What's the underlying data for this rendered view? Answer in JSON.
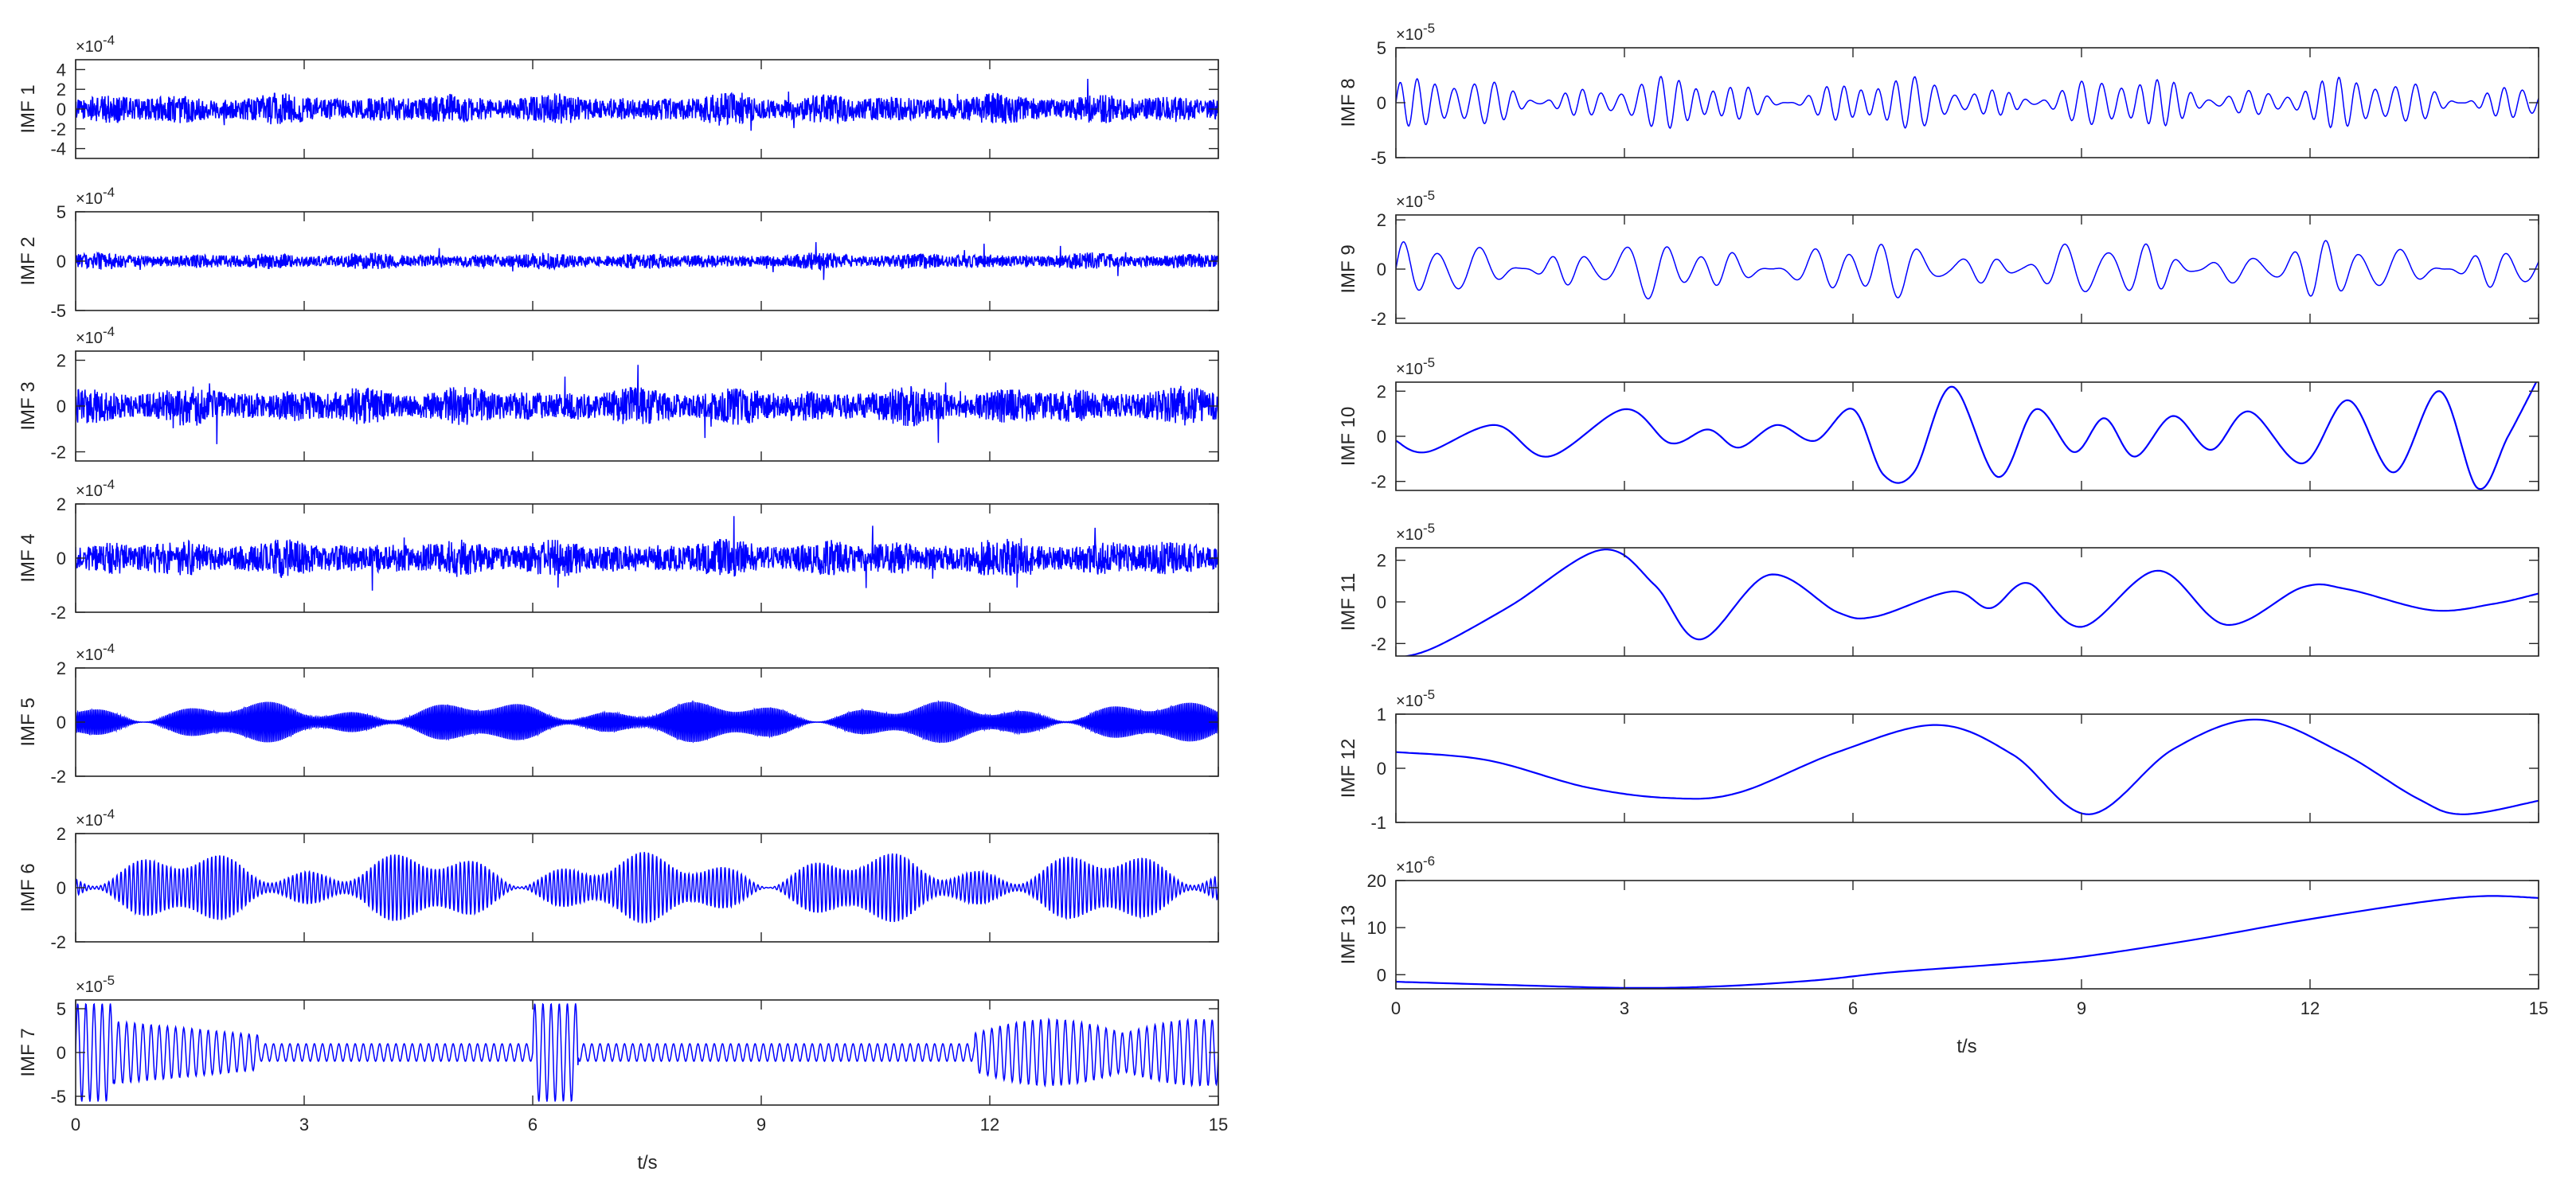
{
  "figure": {
    "xlabel": "t/s",
    "line_color": "#0000ff",
    "axes_color": "#262626"
  },
  "chart_data": [
    {
      "type": "line",
      "ylabel": "IMF 1",
      "exponent": "-4",
      "ylim": [
        -5,
        5
      ],
      "yticks": [
        "4",
        "2",
        "0",
        "-2",
        "-4"
      ],
      "ytick_values": [
        4,
        2,
        0,
        -2,
        -4
      ],
      "xlim": [
        0,
        15
      ],
      "xticks": [],
      "series": [
        {
          "name": "",
          "kind": "noise",
          "amp": 1.7,
          "cycles": 0,
          "sample_rate": 2
        }
      ]
    },
    {
      "type": "line",
      "ylabel": "IMF 2",
      "exponent": "-4",
      "ylim": [
        -5,
        5
      ],
      "yticks": [
        "5",
        "0",
        "-5"
      ],
      "ytick_values": [
        5,
        0,
        -5
      ],
      "xlim": [
        0,
        15
      ],
      "xticks": [],
      "series": [
        {
          "name": "",
          "kind": "noise",
          "amp": 0.9,
          "cycles": 0,
          "sample_rate": 2
        }
      ]
    },
    {
      "type": "line",
      "ylabel": "IMF 3",
      "exponent": "-4",
      "ylim": [
        -2.4,
        2.4
      ],
      "yticks": [
        "2",
        "0",
        "-2"
      ],
      "ytick_values": [
        2,
        0,
        -2
      ],
      "xlim": [
        0,
        15
      ],
      "xticks": [],
      "series": [
        {
          "name": "",
          "kind": "noise",
          "amp": 0.9,
          "cycles": 0,
          "sample_rate": 2
        }
      ]
    },
    {
      "type": "line",
      "ylabel": "IMF 4",
      "exponent": "-4",
      "ylim": [
        -2,
        2
      ],
      "yticks": [
        "2",
        "0",
        "-2"
      ],
      "ytick_values": [
        2,
        0,
        -2
      ],
      "xlim": [
        0,
        15
      ],
      "xticks": [],
      "series": [
        {
          "name": "",
          "kind": "noise",
          "amp": 0.75,
          "cycles": 0,
          "sample_rate": 2
        }
      ]
    },
    {
      "type": "line",
      "ylabel": "IMF 5",
      "exponent": "-4",
      "ylim": [
        -2,
        2
      ],
      "yticks": [
        "2",
        "0",
        "-2"
      ],
      "ytick_values": [
        2,
        0,
        -2
      ],
      "xlim": [
        0,
        15
      ],
      "xticks": [],
      "series": [
        {
          "name": "",
          "kind": "osc",
          "amp": 0.7,
          "cycles": 640,
          "sample_rate": 1
        }
      ]
    },
    {
      "type": "line",
      "ylabel": "IMF 6",
      "exponent": "-4",
      "ylim": [
        -2,
        2
      ],
      "yticks": [
        "2",
        "0",
        "-2"
      ],
      "ytick_values": [
        2,
        0,
        -2
      ],
      "xlim": [
        0,
        15
      ],
      "xticks": [],
      "series": [
        {
          "name": "",
          "kind": "osc",
          "amp": 1.2,
          "cycles": 280,
          "sample_rate": 1
        }
      ]
    },
    {
      "type": "line",
      "ylabel": "IMF 7",
      "exponent": "-5",
      "ylim": [
        -6,
        6
      ],
      "yticks": [
        "5",
        "0",
        "-5"
      ],
      "ytick_values": [
        5,
        0,
        -5
      ],
      "xlim": [
        0,
        15
      ],
      "xticks": [
        "0",
        "3",
        "6",
        "9",
        "12",
        "15"
      ],
      "tick_values": [
        0,
        3,
        6,
        9,
        12,
        15
      ],
      "series": [
        {
          "name": "",
          "kind": "bursts",
          "amp": 4,
          "cycles": 140,
          "sample_rate": 1
        }
      ]
    },
    {
      "type": "line",
      "ylabel": "IMF 8",
      "exponent": "-5",
      "ylim": [
        -5,
        5
      ],
      "yticks": [
        "5",
        "0",
        "-5"
      ],
      "ytick_values": [
        5,
        0,
        -5
      ],
      "xlim": [
        0,
        15
      ],
      "xticks": [],
      "series": [
        {
          "name": "",
          "kind": "osc",
          "amp": 2.2,
          "cycles": 62,
          "sample_rate": 1
        }
      ]
    },
    {
      "type": "line",
      "ylabel": "IMF 9",
      "exponent": "-5",
      "ylim": [
        -2.2,
        2.2
      ],
      "yticks": [
        "2",
        "0",
        "-2"
      ],
      "ytick_values": [
        2,
        0,
        -2
      ],
      "xlim": [
        0,
        15
      ],
      "xticks": [],
      "series": [
        {
          "name": "",
          "kind": "osc",
          "amp": 1.1,
          "cycles": 31,
          "sample_rate": 1
        }
      ]
    },
    {
      "type": "line",
      "ylabel": "IMF 10",
      "exponent": "-5",
      "ylim": [
        -2.4,
        2.4
      ],
      "yticks": [
        "2",
        "0",
        "-2"
      ],
      "ytick_values": [
        2,
        0,
        -2
      ],
      "xlim": [
        0,
        15
      ],
      "xticks": [],
      "series": [
        {
          "name": "",
          "kind": "points",
          "points": [
            [
              0,
              -0.2
            ],
            [
              0.4,
              -0.7
            ],
            [
              1.3,
              0.5
            ],
            [
              2.0,
              -0.9
            ],
            [
              3.0,
              1.2
            ],
            [
              3.6,
              -0.3
            ],
            [
              4.1,
              0.3
            ],
            [
              4.5,
              -0.5
            ],
            [
              5.0,
              0.5
            ],
            [
              5.5,
              -0.2
            ],
            [
              6.0,
              1.2
            ],
            [
              6.4,
              -1.7
            ],
            [
              6.8,
              -1.6
            ],
            [
              7.3,
              2.2
            ],
            [
              7.9,
              -1.8
            ],
            [
              8.4,
              1.2
            ],
            [
              8.9,
              -0.7
            ],
            [
              9.3,
              0.8
            ],
            [
              9.7,
              -0.9
            ],
            [
              10.2,
              0.9
            ],
            [
              10.7,
              -0.6
            ],
            [
              11.2,
              1.1
            ],
            [
              11.9,
              -1.2
            ],
            [
              12.5,
              1.6
            ],
            [
              13.1,
              -1.6
            ],
            [
              13.7,
              2.0
            ],
            [
              14.2,
              -2.3
            ],
            [
              14.6,
              0.0
            ],
            [
              15,
              2.6
            ]
          ]
        }
      ]
    },
    {
      "type": "line",
      "ylabel": "IMF 11",
      "exponent": "-5",
      "ylim": [
        -2.6,
        2.6
      ],
      "yticks": [
        "2",
        "0",
        "-2"
      ],
      "ytick_values": [
        2,
        0,
        -2
      ],
      "xlim": [
        0,
        15
      ],
      "xticks": [],
      "series": [
        {
          "name": "",
          "kind": "points",
          "points": [
            [
              0,
              -2.7
            ],
            [
              0.5,
              -2.2
            ],
            [
              1.5,
              -0.2
            ],
            [
              2.7,
              2.5
            ],
            [
              3.4,
              0.8
            ],
            [
              4.0,
              -1.8
            ],
            [
              4.9,
              1.3
            ],
            [
              5.8,
              -0.5
            ],
            [
              6.3,
              -0.7
            ],
            [
              7.3,
              0.5
            ],
            [
              7.8,
              -0.3
            ],
            [
              8.3,
              0.9
            ],
            [
              9.0,
              -1.2
            ],
            [
              10.0,
              1.5
            ],
            [
              10.9,
              -1.1
            ],
            [
              11.9,
              0.7
            ],
            [
              12.5,
              0.6
            ],
            [
              13.6,
              -0.4
            ],
            [
              14.4,
              -0.1
            ],
            [
              15,
              0.4
            ]
          ]
        }
      ]
    },
    {
      "type": "line",
      "ylabel": "IMF 12",
      "exponent": "-5",
      "ylim": [
        -1,
        1
      ],
      "yticks": [
        "1",
        "0",
        "-1"
      ],
      "ytick_values": [
        1,
        0,
        -1
      ],
      "xlim": [
        0,
        15
      ],
      "xticks": [],
      "series": [
        {
          "name": "",
          "kind": "points",
          "points": [
            [
              0,
              0.3
            ],
            [
              1.2,
              0.15
            ],
            [
              2.5,
              -0.35
            ],
            [
              3.6,
              -0.55
            ],
            [
              4.5,
              -0.45
            ],
            [
              5.8,
              0.3
            ],
            [
              7.1,
              0.8
            ],
            [
              8.1,
              0.25
            ],
            [
              9.1,
              -0.85
            ],
            [
              10.2,
              0.35
            ],
            [
              11.3,
              0.9
            ],
            [
              12.4,
              0.3
            ],
            [
              13.4,
              -0.55
            ],
            [
              14.0,
              -0.85
            ],
            [
              15,
              -0.6
            ]
          ]
        }
      ]
    },
    {
      "type": "line",
      "ylabel": "IMF 13",
      "exponent": "-6",
      "ylim": [
        -3,
        20
      ],
      "yticks": [
        "20",
        "10",
        "0"
      ],
      "ytick_values": [
        20,
        10,
        0
      ],
      "xlim": [
        0,
        15
      ],
      "xticks": [
        "0",
        "3",
        "6",
        "9",
        "12",
        "15"
      ],
      "tick_values": [
        0,
        3,
        6,
        9,
        12,
        15
      ],
      "series": [
        {
          "name": "",
          "kind": "points",
          "points": [
            [
              0,
              -1.5
            ],
            [
              1.5,
              -2.2
            ],
            [
              3.0,
              -2.8
            ],
            [
              4.2,
              -2.5
            ],
            [
              5.5,
              -1.2
            ],
            [
              6.5,
              0.5
            ],
            [
              8.0,
              2.3
            ],
            [
              9.0,
              3.8
            ],
            [
              10.5,
              7.5
            ],
            [
              12.0,
              11.8
            ],
            [
              13.5,
              15.5
            ],
            [
              14.3,
              16.7
            ],
            [
              15,
              16.3
            ]
          ]
        }
      ]
    }
  ]
}
